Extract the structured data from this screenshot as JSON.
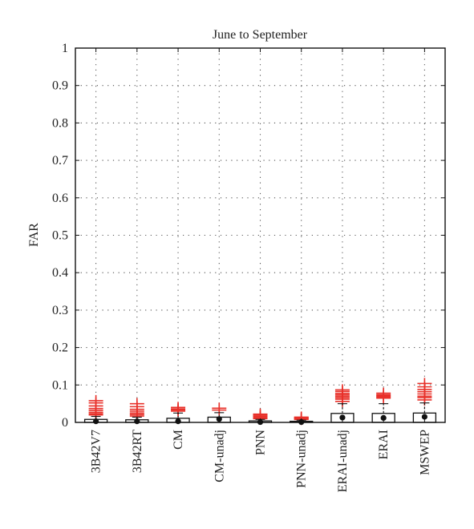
{
  "chart_data": {
    "type": "box",
    "title": "June to September",
    "xlabel": "",
    "ylabel": "FAR",
    "ylim": [
      0,
      1
    ],
    "yticks": [
      0,
      0.1,
      0.2,
      0.3,
      0.4,
      0.5,
      0.6,
      0.7,
      0.8,
      0.9,
      1
    ],
    "ytick_labels": [
      "0",
      "0.1",
      "0.2",
      "0.3",
      "0.4",
      "0.5",
      "0.6",
      "0.7",
      "0.8",
      "0.9",
      "1"
    ],
    "grid": true,
    "categories": [
      "3B42V7",
      "3B42RT",
      "CM",
      "CM-unadj",
      "PNN",
      "PNN-unadj",
      "ERAI-unadj",
      "ERAI",
      "MSWEP"
    ],
    "boxes": [
      {
        "q1": 0.0,
        "median": 0.003,
        "q3": 0.008,
        "whisker_low": 0.0,
        "whisker_high": 0.016,
        "outliers": [
          0.02,
          0.023,
          0.027,
          0.032,
          0.037,
          0.044,
          0.052,
          0.058
        ]
      },
      {
        "q1": 0.0,
        "median": 0.003,
        "q3": 0.007,
        "whisker_low": 0.0,
        "whisker_high": 0.014,
        "outliers": [
          0.017,
          0.021,
          0.025,
          0.03,
          0.035,
          0.042,
          0.05
        ]
      },
      {
        "q1": 0.0,
        "median": 0.003,
        "q3": 0.011,
        "whisker_low": 0.0,
        "whisker_high": 0.025,
        "outliers": [
          0.03,
          0.033,
          0.036,
          0.04
        ]
      },
      {
        "q1": 0.0,
        "median": 0.009,
        "q3": 0.014,
        "whisker_low": 0.0,
        "whisker_high": 0.026,
        "outliers": [
          0.033,
          0.038
        ]
      },
      {
        "q1": 0.0,
        "median": 0.001,
        "q3": 0.004,
        "whisker_low": 0.0,
        "whisker_high": 0.008,
        "outliers": [
          0.01,
          0.013,
          0.016,
          0.019,
          0.022
        ]
      },
      {
        "q1": 0.0,
        "median": 0.001,
        "q3": 0.003,
        "whisker_low": 0.0,
        "whisker_high": 0.006,
        "outliers": [
          0.008,
          0.009,
          0.011,
          0.012,
          0.013,
          0.014
        ]
      },
      {
        "q1": 0.0,
        "median": 0.013,
        "q3": 0.024,
        "whisker_low": 0.0,
        "whisker_high": 0.05,
        "outliers": [
          0.056,
          0.062,
          0.066,
          0.07,
          0.074,
          0.078,
          0.083,
          0.087
        ]
      },
      {
        "q1": 0.0,
        "median": 0.012,
        "q3": 0.024,
        "whisker_low": 0.0,
        "whisker_high": 0.05,
        "outliers": [
          0.065,
          0.068,
          0.071,
          0.074,
          0.078
        ]
      },
      {
        "q1": 0.0,
        "median": 0.015,
        "q3": 0.025,
        "whisker_low": 0.0,
        "whisker_high": 0.052,
        "outliers": [
          0.06,
          0.066,
          0.07,
          0.076,
          0.082,
          0.088,
          0.095,
          0.104
        ]
      }
    ]
  },
  "colors": {
    "outlier": "#e8312a",
    "box": "#111111",
    "grid": "#555555",
    "median": "#111111"
  }
}
